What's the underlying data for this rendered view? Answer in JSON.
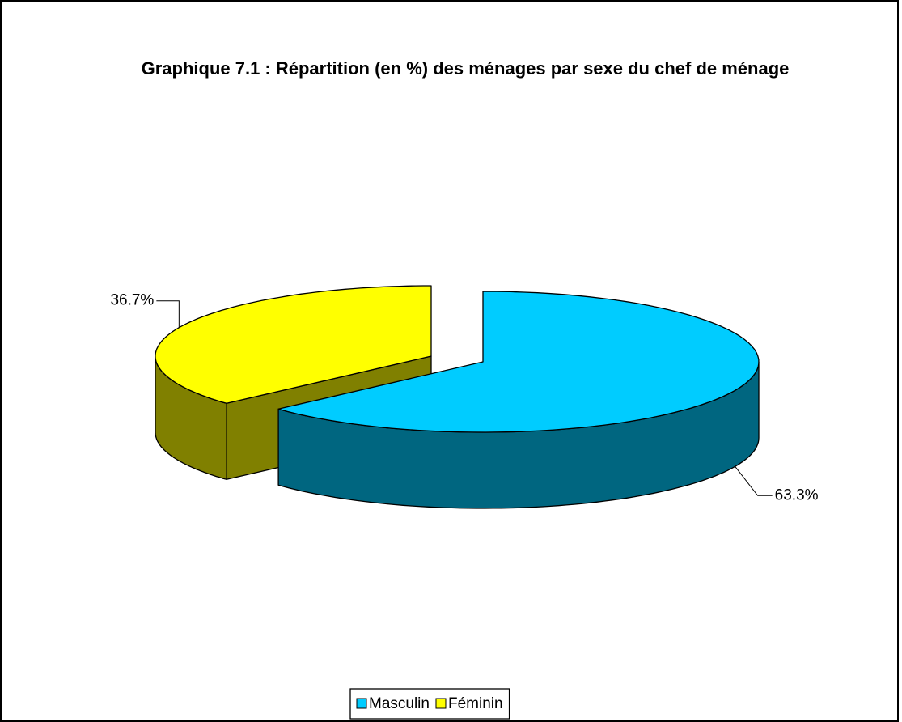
{
  "chart_data": {
    "type": "pie3d",
    "title": "Graphique 7.1 : Répartition (en %) des ménages par sexe du chef de ménage",
    "categories": [
      "Masculin",
      "Féminin"
    ],
    "values": [
      63.3,
      36.7
    ],
    "value_labels": [
      "63.3%",
      "36.7%"
    ],
    "colors": [
      "#00CCFF",
      "#FFFF00"
    ],
    "side_colors": [
      "#006680",
      "#808000"
    ],
    "legend": "bottom"
  }
}
